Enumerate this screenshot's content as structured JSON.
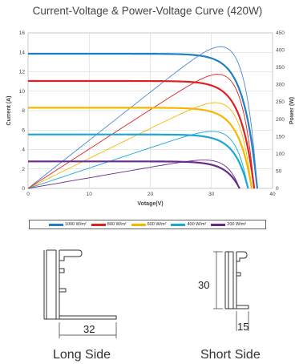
{
  "page_title": "Current-Voltage & Power-Voltage Curve (420W)",
  "chart_data": {
    "type": "line",
    "title": "Current-Voltage & Power-Voltage Curve (420W)",
    "xlabel": "Votage(V)",
    "ylabel": "Current (A)",
    "y2label": "Power (W)",
    "xlim": [
      0,
      40
    ],
    "ylim": [
      0,
      16
    ],
    "y2lim": [
      0,
      450
    ],
    "x_ticks": [
      0,
      10,
      20,
      30,
      40
    ],
    "y_ticks": [
      0,
      2,
      4,
      6,
      8,
      10,
      12,
      14,
      16
    ],
    "y2_ticks": [
      0,
      50,
      100,
      150,
      200,
      250,
      300,
      350,
      400,
      450
    ],
    "grid": true,
    "legend_position": "bottom",
    "series": [
      {
        "name": "1000 W/m²",
        "color": "#1f7fc4",
        "power_color": "#4a86d8",
        "isc": 13.85,
        "vmp": 31.3,
        "voc": 37.5,
        "pmax": 410
      },
      {
        "name": "800 W/m²",
        "color": "#e02020",
        "power_color": "#e02020",
        "isc": 11.05,
        "vmp": 31.0,
        "voc": 37.0,
        "pmax": 330
      },
      {
        "name": "600 W/m²",
        "color": "#f5b800",
        "power_color": "#f5b800",
        "isc": 8.3,
        "vmp": 31.0,
        "voc": 36.6,
        "pmax": 248
      },
      {
        "name": "400 W/m²",
        "color": "#1aa7d8",
        "power_color": "#1aa7d8",
        "isc": 5.55,
        "vmp": 30.5,
        "voc": 36.0,
        "pmax": 165
      },
      {
        "name": "200 W/m²",
        "color": "#6a2a8a",
        "power_color": "#6a2a8a",
        "isc": 2.78,
        "vmp": 30.0,
        "voc": 34.6,
        "pmax": 82
      }
    ]
  },
  "profiles": {
    "long_side_label": "Long Side",
    "long_side_dim": "32",
    "short_side_label": "Short Side",
    "short_side_dim_height": "30",
    "short_side_dim_width": "15"
  }
}
